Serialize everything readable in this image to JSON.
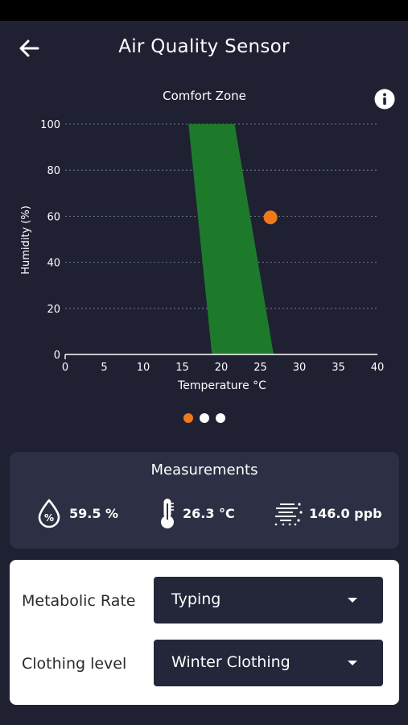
{
  "appbar": {
    "title": "Air Quality Sensor",
    "back_icon": "arrow-left-icon"
  },
  "info_icon": "info-circle-icon",
  "chart_data": {
    "type": "scatter",
    "title": "Comfort Zone",
    "xlabel": "Temperature °C",
    "ylabel": "Humidity (%)",
    "xlim": [
      0,
      40
    ],
    "ylim": [
      0,
      100
    ],
    "xticks": [
      "0",
      "5",
      "10",
      "15",
      "20",
      "25",
      "30",
      "35",
      "40"
    ],
    "yticks": [
      "0",
      "20",
      "40",
      "60",
      "80",
      "100"
    ],
    "grid": true,
    "comfort_zone": {
      "color": "#1e7a2b",
      "polygon": [
        [
          15.8,
          100
        ],
        [
          21.7,
          100
        ],
        [
          26.7,
          0
        ],
        [
          18.8,
          0
        ]
      ]
    },
    "points": [
      {
        "x": 26.3,
        "y": 59.5,
        "color": "#f07a19"
      }
    ]
  },
  "pager": {
    "count": 3,
    "active": 0,
    "active_color": "#f07a19"
  },
  "measurements": {
    "title": "Measurements",
    "humidity": {
      "icon": "humidity-drop-icon",
      "value": "59.5 %"
    },
    "temperature": {
      "icon": "thermometer-icon",
      "value": "26.3 °C"
    },
    "air": {
      "icon": "air-particles-icon",
      "value": "146.0 ppb"
    }
  },
  "settings": {
    "metabolic": {
      "label": "Metabolic Rate",
      "value": "Typing"
    },
    "clothing": {
      "label": "Clothing level",
      "value": "Winter Clothing"
    }
  }
}
